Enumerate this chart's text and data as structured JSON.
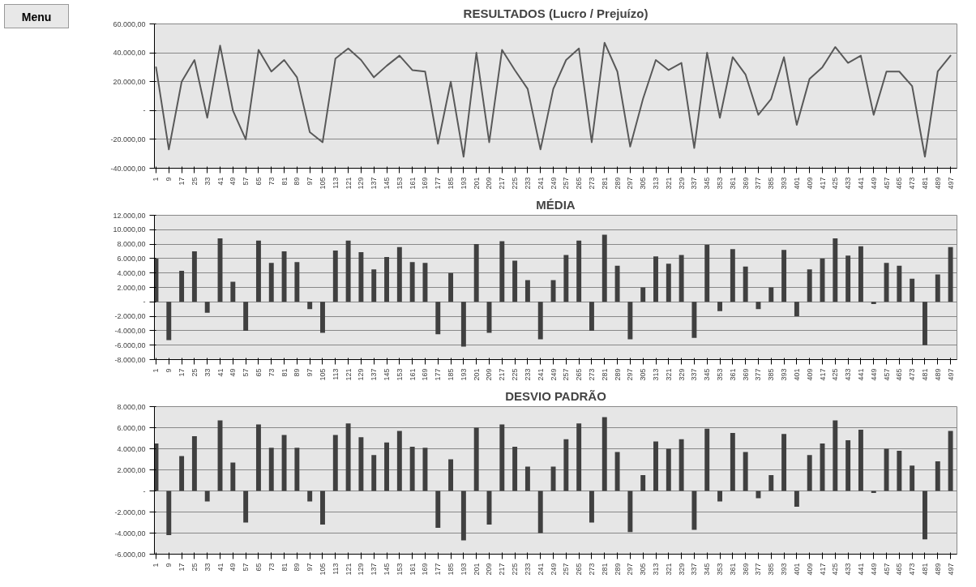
{
  "chart_data": [
    {
      "type": "line",
      "title": "RESULTADOS (Lucro / Prejuízo)",
      "annotations": [
        "Menu"
      ],
      "grid": "y",
      "marker": "none",
      "line_style": "solid",
      "x": [
        1,
        9,
        17,
        25,
        33,
        41,
        49,
        57,
        65,
        73,
        81,
        89,
        97,
        105,
        113,
        121,
        129,
        137,
        145,
        153,
        161,
        169,
        177,
        185,
        193,
        201,
        209,
        217,
        225,
        233,
        241,
        249,
        257,
        265,
        273,
        281,
        289,
        297,
        305,
        313,
        321,
        329,
        337,
        345,
        353,
        361,
        369,
        377,
        385,
        393,
        401,
        409,
        417,
        425,
        433,
        441,
        449,
        457,
        465,
        473,
        481,
        489,
        497
      ],
      "xlim": [
        0,
        501
      ],
      "xticks": [
        1,
        9,
        17,
        25,
        33,
        41,
        49,
        57,
        65,
        73,
        81,
        89,
        97,
        105,
        113,
        121,
        129,
        137,
        145,
        153,
        161,
        169,
        177,
        185,
        193,
        201,
        209,
        217,
        225,
        233,
        241,
        249,
        257,
        265,
        273,
        281,
        289,
        297,
        305,
        313,
        321,
        329,
        337,
        345,
        353,
        361,
        369,
        377,
        385,
        393,
        401,
        409,
        417,
        425,
        433,
        441,
        449,
        457,
        465,
        473,
        481,
        489,
        497
      ],
      "ylim": [
        -40000,
        60000
      ],
      "yticks": [
        {
          "value": -40000,
          "label": "-40.000,00"
        },
        {
          "value": -20000,
          "label": "-20.000,00"
        },
        {
          "value": 0,
          "label": "-"
        },
        {
          "value": 20000,
          "label": "20.000,00"
        },
        {
          "value": 40000,
          "label": "40.000,00"
        },
        {
          "value": 60000,
          "label": "60.000,00"
        }
      ],
      "series": [
        {
          "color": "#595959",
          "values": [
            30000,
            -27000,
            20000,
            35000,
            -5000,
            45000,
            0,
            -20000,
            42000,
            27000,
            35000,
            23000,
            -15000,
            -22000,
            36000,
            43000,
            35000,
            23000,
            31000,
            38000,
            28000,
            27000,
            -23000,
            20000,
            -32000,
            40000,
            -22000,
            42000,
            28000,
            15000,
            -27000,
            15000,
            35000,
            43000,
            -22000,
            47000,
            27000,
            -25000,
            8000,
            35000,
            28000,
            33000,
            -26000,
            40000,
            -5000,
            37000,
            25000,
            -3000,
            8000,
            37000,
            -10000,
            22000,
            30000,
            44000,
            33000,
            38000,
            -3000,
            27000,
            27000,
            17000,
            -32000,
            27000,
            38000
          ]
        }
      ]
    },
    {
      "type": "bar",
      "title": "MÉDIA",
      "grid": "y",
      "x": [
        1,
        9,
        17,
        25,
        33,
        41,
        49,
        57,
        65,
        73,
        81,
        89,
        97,
        105,
        113,
        121,
        129,
        137,
        145,
        153,
        161,
        169,
        177,
        185,
        193,
        201,
        209,
        217,
        225,
        233,
        241,
        249,
        257,
        265,
        273,
        281,
        289,
        297,
        305,
        313,
        321,
        329,
        337,
        345,
        353,
        361,
        369,
        377,
        385,
        393,
        401,
        409,
        417,
        425,
        433,
        441,
        449,
        457,
        465,
        473,
        481,
        489,
        497
      ],
      "xlim": [
        0,
        501
      ],
      "xticks": [
        1,
        9,
        17,
        25,
        33,
        41,
        49,
        57,
        65,
        73,
        81,
        89,
        97,
        105,
        113,
        121,
        129,
        137,
        145,
        153,
        161,
        169,
        177,
        185,
        193,
        201,
        209,
        217,
        225,
        233,
        241,
        249,
        257,
        265,
        273,
        281,
        289,
        297,
        305,
        313,
        321,
        329,
        337,
        345,
        353,
        361,
        369,
        377,
        385,
        393,
        401,
        409,
        417,
        425,
        433,
        441,
        449,
        457,
        465,
        473,
        481,
        489,
        497
      ],
      "ylim": [
        -8000,
        12000
      ],
      "yticks": [
        {
          "value": -8000,
          "label": "-8.000,00"
        },
        {
          "value": -6000,
          "label": "-6.000,00"
        },
        {
          "value": -4000,
          "label": "-4.000,00"
        },
        {
          "value": -2000,
          "label": "-2.000,00"
        },
        {
          "value": 0,
          "label": "-"
        },
        {
          "value": 2000,
          "label": "2.000,00"
        },
        {
          "value": 4000,
          "label": "4.000,00"
        },
        {
          "value": 6000,
          "label": "6.000,00"
        },
        {
          "value": 8000,
          "label": "8.000,00"
        },
        {
          "value": 10000,
          "label": "10.000,00"
        },
        {
          "value": 12000,
          "label": "12.000,00"
        }
      ],
      "series": [
        {
          "color": "#404040",
          "values": [
            6000,
            -5300,
            4300,
            7000,
            -1500,
            8800,
            2800,
            -4000,
            8500,
            5400,
            7000,
            5500,
            -1000,
            -4300,
            7100,
            8500,
            6900,
            4500,
            6200,
            7600,
            5500,
            5400,
            -4500,
            4000,
            -6200,
            8000,
            -4300,
            8400,
            5700,
            3000,
            -5200,
            3000,
            6500,
            8500,
            -4000,
            9300,
            5000,
            -5200,
            2000,
            6300,
            5300,
            6500,
            -5000,
            7900,
            -1300,
            7300,
            4900,
            -1000,
            2000,
            7200,
            -2000,
            4500,
            6000,
            8800,
            6400,
            7700,
            -300,
            5400,
            5000,
            3200,
            -6000,
            3800,
            7600
          ]
        }
      ]
    },
    {
      "type": "bar",
      "title": "DESVIO PADRÃO",
      "grid": "y",
      "x": [
        1,
        9,
        17,
        25,
        33,
        41,
        49,
        57,
        65,
        73,
        81,
        89,
        97,
        105,
        113,
        121,
        129,
        137,
        145,
        153,
        161,
        169,
        177,
        185,
        193,
        201,
        209,
        217,
        225,
        233,
        241,
        249,
        257,
        265,
        273,
        281,
        289,
        297,
        305,
        313,
        321,
        329,
        337,
        345,
        353,
        361,
        369,
        377,
        385,
        393,
        401,
        409,
        417,
        425,
        433,
        441,
        449,
        457,
        465,
        473,
        481,
        489,
        497
      ],
      "xlim": [
        0,
        501
      ],
      "xticks": [
        1,
        9,
        17,
        25,
        33,
        41,
        49,
        57,
        65,
        73,
        81,
        89,
        97,
        105,
        113,
        121,
        129,
        137,
        145,
        153,
        161,
        169,
        177,
        185,
        193,
        201,
        209,
        217,
        225,
        233,
        241,
        249,
        257,
        265,
        273,
        281,
        289,
        297,
        305,
        313,
        321,
        329,
        337,
        345,
        353,
        361,
        369,
        377,
        385,
        393,
        401,
        409,
        417,
        425,
        433,
        441,
        449,
        457,
        465,
        473,
        481,
        489,
        497
      ],
      "ylim": [
        -6000,
        8000
      ],
      "yticks": [
        {
          "value": -6000,
          "label": "-6.000,00"
        },
        {
          "value": -4000,
          "label": "-4.000,00"
        },
        {
          "value": -2000,
          "label": "-2.000,00"
        },
        {
          "value": 0,
          "label": "-"
        },
        {
          "value": 2000,
          "label": "2.000,00"
        },
        {
          "value": 4000,
          "label": "4.000,00"
        },
        {
          "value": 6000,
          "label": "6.000,00"
        },
        {
          "value": 8000,
          "label": "8.000,00"
        }
      ],
      "series": [
        {
          "color": "#404040",
          "values": [
            4500,
            -4200,
            3300,
            5200,
            -1000,
            6700,
            2700,
            -3000,
            6300,
            4100,
            5300,
            4100,
            -1000,
            -3200,
            5300,
            6400,
            5100,
            3400,
            4600,
            5700,
            4200,
            4100,
            -3500,
            3000,
            -4700,
            6000,
            -3200,
            6300,
            4200,
            2300,
            -4000,
            2300,
            4900,
            6400,
            -3000,
            7000,
            3700,
            -3900,
            1500,
            4700,
            4000,
            4900,
            -3700,
            5900,
            -1000,
            5500,
            3700,
            -700,
            1500,
            5400,
            -1500,
            3400,
            4500,
            6700,
            4800,
            5800,
            -200,
            4000,
            3800,
            2400,
            -4600,
            2800,
            5700
          ]
        }
      ]
    }
  ]
}
